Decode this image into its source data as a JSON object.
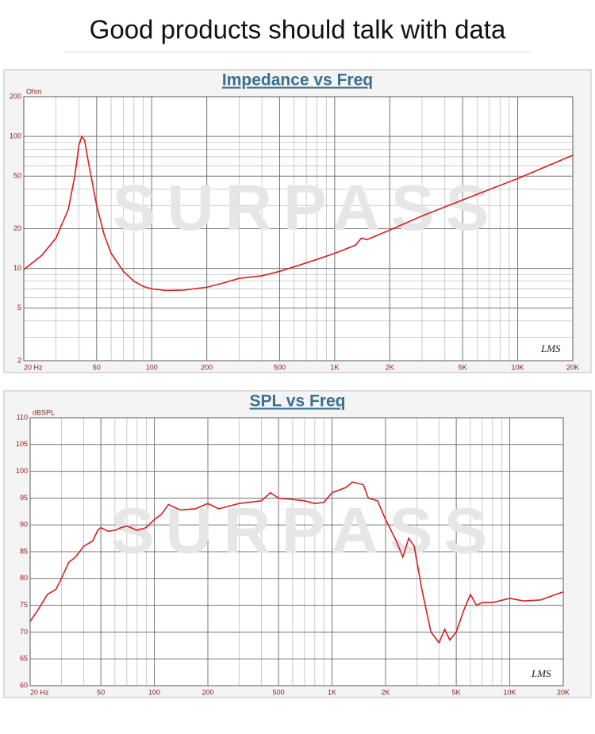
{
  "header": "Good products should talk with data",
  "chart_data": [
    {
      "type": "line",
      "title": "Impedance vs Freq",
      "ylabel": "Ohm",
      "watermark": "SURPASS",
      "annotation": "LMS",
      "xscale": "log",
      "yscale": "log",
      "grid": true,
      "xlim": [
        20,
        20000
      ],
      "ylim": [
        2,
        200
      ],
      "xticks": [
        {
          "value": 20,
          "label": "20  Hz"
        },
        50,
        100,
        200,
        500,
        {
          "value": 1000,
          "label": "1K"
        },
        {
          "value": 2000,
          "label": "2K"
        },
        {
          "value": 5000,
          "label": "5K"
        },
        {
          "value": 10000,
          "label": "10K"
        },
        {
          "value": 20000,
          "label": "20K"
        }
      ],
      "yticks": [
        2,
        5,
        10,
        20,
        50,
        100,
        200
      ],
      "series": [
        {
          "name": "Impedance",
          "color": "#d81e1e",
          "x": [
            20,
            25,
            30,
            35,
            38,
            40,
            41.5,
            43,
            45,
            50,
            55,
            60,
            70,
            80,
            90,
            100,
            120,
            150,
            200,
            250,
            300,
            400,
            500,
            700,
            1000,
            1300,
            1400,
            1500,
            2000,
            3000,
            5000,
            10000,
            20000
          ],
          "values": [
            9.8,
            12.5,
            17,
            28,
            50,
            85,
            100,
            93,
            65,
            30,
            18,
            13,
            9.5,
            8,
            7.3,
            7,
            6.8,
            6.85,
            7.2,
            7.8,
            8.4,
            8.8,
            9.5,
            11,
            13,
            15,
            17,
            16.5,
            19.5,
            25,
            33,
            48,
            72
          ]
        }
      ]
    },
    {
      "type": "line",
      "title": "SPL vs Freq",
      "ylabel": "dBSPL",
      "watermark": "SURPASS",
      "annotation": "LMS",
      "xscale": "log",
      "yscale": "linear",
      "grid": true,
      "xlim": [
        20,
        20000
      ],
      "ylim": [
        60,
        110
      ],
      "xticks": [
        {
          "value": 20,
          "label": "20  Hz"
        },
        50,
        100,
        200,
        500,
        {
          "value": 1000,
          "label": "1K"
        },
        {
          "value": 2000,
          "label": "2K"
        },
        {
          "value": 5000,
          "label": "5K"
        },
        {
          "value": 10000,
          "label": "10K"
        },
        {
          "value": 20000,
          "label": "20K"
        }
      ],
      "yticks": [
        60,
        65,
        70,
        75,
        80,
        85,
        90,
        95,
        100,
        105,
        110
      ],
      "series": [
        {
          "name": "SPL",
          "color": "#d81e1e",
          "x": [
            20,
            22,
            25,
            28,
            30,
            33,
            36,
            40,
            45,
            48,
            50,
            55,
            60,
            65,
            70,
            80,
            90,
            100,
            110,
            120,
            140,
            170,
            200,
            230,
            300,
            400,
            450,
            500,
            700,
            800,
            900,
            1000,
            1200,
            1300,
            1500,
            1600,
            1800,
            2000,
            2300,
            2500,
            2700,
            2900,
            3200,
            3600,
            4000,
            4300,
            4600,
            5000,
            5500,
            6000,
            6500,
            7000,
            8000,
            10000,
            12000,
            15000,
            18000,
            20000
          ],
          "values": [
            72,
            74,
            77,
            78,
            80,
            83,
            84,
            86,
            87,
            89,
            89.5,
            88.8,
            89,
            89.5,
            89.8,
            89,
            89.5,
            91,
            92,
            93.8,
            92.8,
            93,
            94,
            93,
            94,
            94.5,
            96,
            95,
            94.5,
            94,
            94.2,
            96,
            97,
            98,
            97.5,
            95,
            94.5,
            91,
            87,
            84,
            87.5,
            86,
            78,
            70,
            68,
            70.5,
            68.5,
            70,
            74,
            77,
            75,
            75.5,
            75.5,
            76.3,
            75.8,
            76,
            77,
            77.5
          ]
        }
      ]
    }
  ]
}
